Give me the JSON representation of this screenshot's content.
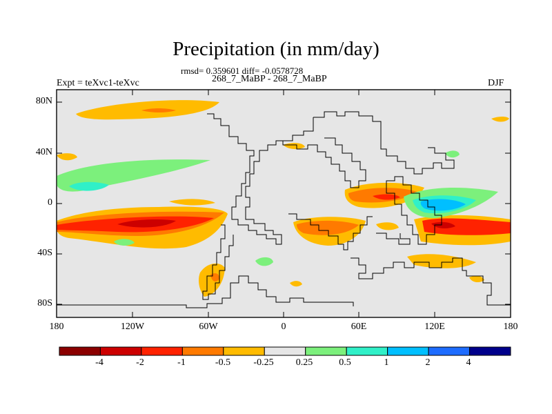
{
  "figure": {
    "title": "Precipitation (in mm/day)",
    "stats_line": "rmsd= 0.359601 diff= -0.0578728",
    "comparison": "268_7_MaBP - 268_7_MaBP",
    "experiment": "Expt = teXvc1-teXvc",
    "season": "DJF"
  },
  "axes": {
    "lat_ticks": [
      "80N",
      "40N",
      "0",
      "40S",
      "80S"
    ],
    "lon_ticks": [
      "180",
      "120W",
      "60W",
      "0",
      "60E",
      "120E",
      "180"
    ]
  },
  "colorbar": {
    "labels": [
      "-4",
      "-2",
      "-1",
      "-0.5",
      "-0.25",
      "0.25",
      "0.5",
      "1",
      "2",
      "4"
    ],
    "colors": [
      "#8b0000",
      "#cc0000",
      "#ff2200",
      "#ff7a00",
      "#ffbb00",
      "#e6e6e6",
      "#7cf07c",
      "#30f0c8",
      "#00bfff",
      "#1e6cff",
      "#00008b"
    ]
  },
  "chart_data": {
    "type": "filled-contour-map",
    "variable": "Precipitation difference (mm/day)",
    "projection": "cylindrical equidistant",
    "lon_range": [
      -180,
      180
    ],
    "lat_range": [
      -90,
      90
    ],
    "contour_levels": [
      -4,
      -2,
      -1,
      -0.5,
      -0.25,
      0.25,
      0.5,
      1,
      2,
      4
    ],
    "features": [
      {
        "name": "North Pacific dry band",
        "lon": [
          -170,
          -90
        ],
        "lat": [
          60,
          75
        ],
        "value": -0.5
      },
      {
        "name": "East Pacific wet band",
        "lon": [
          -180,
          -100
        ],
        "lat": [
          5,
          25
        ],
        "value": 0.5
      },
      {
        "name": "South Pacific drying",
        "lon": [
          -180,
          -80
        ],
        "lat": [
          -25,
          -8
        ],
        "value": -2
      },
      {
        "name": "Equatorial Africa drying",
        "lon": [
          50,
          100
        ],
        "lat": [
          -5,
          10
        ],
        "value": -1
      },
      {
        "name": "Western Pacific wetting",
        "lon": [
          100,
          150
        ],
        "lat": [
          -15,
          5
        ],
        "value": 1
      },
      {
        "name": "Southern Indian Ocean drying",
        "lon": [
          5,
          60
        ],
        "lat": [
          -30,
          -15
        ],
        "value": -1
      },
      {
        "name": "Southwest Pacific drying",
        "lon": [
          110,
          180
        ],
        "lat": [
          -30,
          -15
        ],
        "value": -1
      },
      {
        "name": "South America drying",
        "lon": [
          -65,
          -55
        ],
        "lat": [
          -70,
          -50
        ],
        "value": -0.5
      }
    ]
  }
}
